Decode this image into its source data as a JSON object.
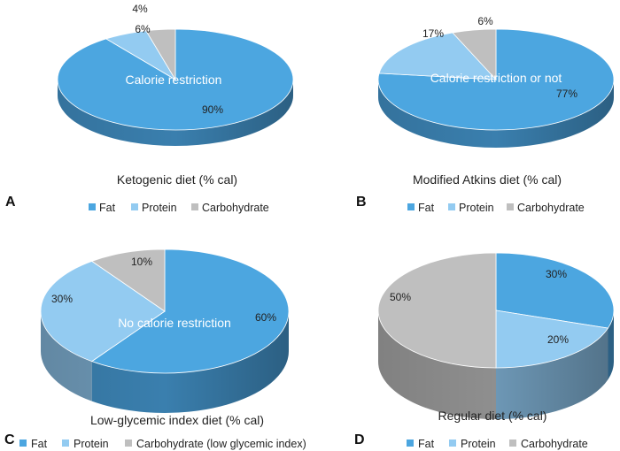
{
  "colors": {
    "fat": "#4ca6e0",
    "protein": "#93cbf1",
    "carbohydrate": "#bfbfbf",
    "fat_side": "#3a7fae",
    "protein_side": "#6d97b5",
    "carbohydrate_side": "#8f8f8f",
    "fat_side_dark": "#3d5064",
    "carbohydrate_side_dark": "#888888"
  },
  "chart_data": [
    {
      "type": "pie",
      "panel": "A",
      "title": "Ketogenic diet (% cal)",
      "annotation": "Calorie restriction",
      "categories": [
        "Fat",
        "Protein",
        "Carbohydrate"
      ],
      "values": [
        90,
        6,
        4
      ],
      "labels": [
        "90%",
        "6%",
        "4%"
      ],
      "legend": [
        "Fat",
        "Protein",
        "Carbohydrate"
      ]
    },
    {
      "type": "pie",
      "panel": "B",
      "title": "Modified Atkins diet (% cal)",
      "annotation": "Calorie restriction or not",
      "categories": [
        "Fat",
        "Protein",
        "Carbohydrate"
      ],
      "values": [
        77,
        17,
        6
      ],
      "labels": [
        "77%",
        "17%",
        "6%"
      ],
      "legend": [
        "Fat",
        "Protein",
        "Carbohydrate"
      ]
    },
    {
      "type": "pie",
      "panel": "C",
      "title": "Low-glycemic index diet (% cal)",
      "annotation": "No calorie restriction",
      "categories": [
        "Fat",
        "Protein",
        "Carbohydrate (low glycemic index)"
      ],
      "values": [
        60,
        30,
        10
      ],
      "labels": [
        "60%",
        "30%",
        "10%"
      ],
      "legend": [
        "Fat",
        "Protein",
        "Carbohydrate (low glycemic index)"
      ]
    },
    {
      "type": "pie",
      "panel": "D",
      "title": "Regular diet (% cal)",
      "annotation": "",
      "categories": [
        "Fat",
        "Protein",
        "Carbohydrate"
      ],
      "values": [
        30,
        20,
        50
      ],
      "labels": [
        "30%",
        "20%",
        "50%"
      ],
      "legend": [
        "Fat",
        "Protein",
        "Carbohydrate"
      ]
    }
  ]
}
